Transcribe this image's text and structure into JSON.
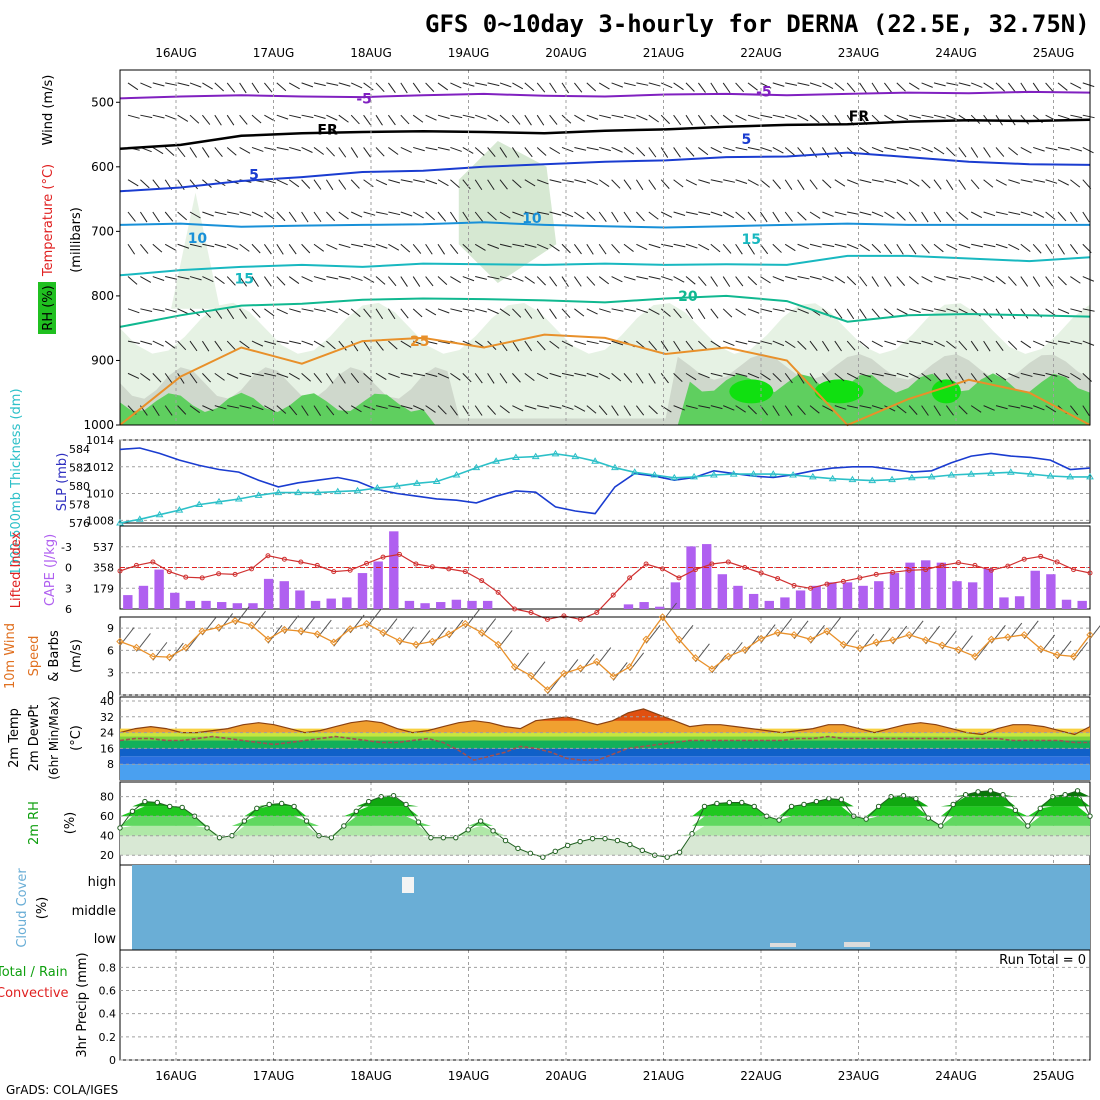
{
  "title": "GFS 0~10day 3-hourly for DERNA (22.5E, 32.75N)",
  "footer": "GrADS: COLA/IGES",
  "dates": [
    "16AUG",
    "17AUG",
    "18AUG",
    "19AUG",
    "20AUG",
    "21AUG",
    "22AUG",
    "23AUG",
    "24AUG",
    "25AUG"
  ],
  "colors": {
    "frame": "#000000",
    "grid": "#a0a0a0",
    "cyan": "#2cc0c8",
    "blue": "#1a3cd0",
    "red": "#e02020",
    "orange": "#e8902a",
    "violet": "#b060f0",
    "green": "#10c010",
    "cloud": "#6aaed6",
    "purple": "#8020c0"
  },
  "chart_data": [
    {
      "id": "upper-air",
      "type": "contour",
      "ylabel": "Wind (m/s)",
      "ylabel2": "Temperature (°C)",
      "ylabel3": "RH (%)",
      "ylabel4": "(millibars)",
      "yticks": [
        500,
        600,
        700,
        800,
        900,
        1000
      ],
      "ylim": [
        1000,
        450
      ],
      "temp_contours": [
        {
          "level": "-5",
          "pressure": [
            494,
            491,
            489,
            491,
            492,
            489,
            487,
            490,
            491,
            488,
            487,
            489,
            487,
            485,
            486,
            484,
            485
          ]
        },
        {
          "level": "FR",
          "pressure": [
            572,
            566,
            552,
            548,
            546,
            545,
            546,
            548,
            544,
            542,
            538,
            535,
            534,
            530,
            528,
            529,
            527
          ]
        },
        {
          "level": "5",
          "pressure": [
            638,
            632,
            622,
            616,
            608,
            606,
            600,
            596,
            592,
            590,
            585,
            584,
            578,
            585,
            592,
            596,
            597
          ]
        },
        {
          "level": "10",
          "pressure": [
            690,
            688,
            693,
            691,
            690,
            689,
            686,
            690,
            692,
            694,
            692,
            690,
            688,
            690,
            690,
            690,
            690
          ]
        },
        {
          "level": "15",
          "pressure": [
            768,
            760,
            755,
            752,
            755,
            750,
            751,
            752,
            750,
            752,
            751,
            752,
            738,
            738,
            742,
            746,
            740
          ]
        },
        {
          "level": "20",
          "pressure": [
            848,
            830,
            815,
            812,
            806,
            804,
            805,
            807,
            810,
            804,
            800,
            808,
            840,
            830,
            828,
            830,
            832
          ]
        },
        {
          "level": "25",
          "pressure": [
            1000,
            925,
            880,
            905,
            870,
            865,
            880,
            860,
            865,
            890,
            880,
            900,
            1000,
            960,
            930,
            950,
            1000
          ]
        }
      ],
      "contour_labels": [
        {
          "text": "-5",
          "x": 1.85,
          "p": 494
        },
        {
          "text": "FR",
          "x": 1.45,
          "p": 542
        },
        {
          "text": "5",
          "x": 0.75,
          "p": 612
        },
        {
          "text": "10",
          "x": 0.12,
          "p": 710
        },
        {
          "text": "15",
          "x": 0.6,
          "p": 773
        },
        {
          "text": "25",
          "x": 2.4,
          "p": 870
        },
        {
          "text": "-5",
          "x": 5.95,
          "p": 483
        },
        {
          "text": "FR",
          "x": 6.9,
          "p": 521
        },
        {
          "text": "5",
          "x": 5.8,
          "p": 557
        },
        {
          "text": "10",
          "x": 3.55,
          "p": 679
        },
        {
          "text": "15",
          "x": 5.8,
          "p": 712
        },
        {
          "text": "20",
          "x": 5.15,
          "p": 800
        }
      ],
      "rh_above_70_regions": [
        {
          "x": [
            -0.4,
            9.3
          ],
          "p_top": 880
        },
        {
          "x": [
            5.2,
            9.3
          ],
          "p_top": 840
        },
        {
          "x": [
            2.9,
            3.9
          ],
          "p_top": 620
        }
      ],
      "rh_above_90_regions": [
        {
          "x": [
            1.7,
            2.4
          ],
          "p_top": 920
        },
        {
          "x": [
            5.8,
            7.2
          ],
          "p_top": 925
        },
        {
          "x": [
            6.4,
            6.8
          ],
          "p_top": 935
        }
      ]
    },
    {
      "id": "thickness-slp",
      "type": "line",
      "ylabel": "1000-500mb Thickness (dm)",
      "ylabel2": "SLP (mb)",
      "yticks_left": [
        576,
        578,
        580,
        582,
        584
      ],
      "yticks_right": [
        1008,
        1010,
        1012,
        1014
      ],
      "series": [
        {
          "name": "SLP (mb)",
          "axis": "right",
          "values": [
            1013.3,
            1013.4,
            1013.0,
            1012.5,
            1012.1,
            1011.8,
            1011.6,
            1011.0,
            1010.5,
            1010.8,
            1011.0,
            1011.2,
            1010.9,
            1010.3,
            1010.0,
            1009.8,
            1009.6,
            1009.5,
            1009.3,
            1009.8,
            1010.2,
            1010.1,
            1009.0,
            1008.7,
            1008.5,
            1010.5,
            1011.5,
            1011.3,
            1011.0,
            1011.2,
            1011.7,
            1011.5,
            1011.3,
            1011.2,
            1011.4,
            1011.7,
            1011.9,
            1012.0,
            1012.0,
            1011.8,
            1011.6,
            1011.7,
            1012.3,
            1012.8,
            1013.0,
            1012.8,
            1012.7,
            1012.5,
            1011.8,
            1011.9
          ]
        },
        {
          "name": "1000-500mb Thickness (dm)",
          "axis": "left",
          "values": [
            576.0,
            576.4,
            576.9,
            577.4,
            578.0,
            578.3,
            578.6,
            579.0,
            579.3,
            579.3,
            579.3,
            579.4,
            579.5,
            579.8,
            580.0,
            580.3,
            580.5,
            581.2,
            582.0,
            582.7,
            583.1,
            583.2,
            583.5,
            583.2,
            582.7,
            582.0,
            581.5,
            581.2,
            580.9,
            581.0,
            581.2,
            581.3,
            581.3,
            581.3,
            581.2,
            581.0,
            580.8,
            580.7,
            580.6,
            580.7,
            580.9,
            581.0,
            581.2,
            581.3,
            581.4,
            581.5,
            581.3,
            581.1,
            581.0,
            581.0
          ]
        }
      ]
    },
    {
      "id": "lifted-cape",
      "type": "bar+line",
      "ylabel": "Lifted Index",
      "ylabel2": "CAPE (J/kg)",
      "yticks_left": [
        -3,
        0,
        3,
        6
      ],
      "yticks_right": [
        179,
        358,
        537
      ],
      "series": [
        {
          "name": "CAPE (J/kg)",
          "type": "bar",
          "values": [
            120,
            200,
            340,
            140,
            70,
            70,
            60,
            50,
            50,
            260,
            240,
            160,
            70,
            90,
            100,
            310,
            410,
            670,
            70,
            50,
            60,
            80,
            70,
            70,
            0,
            0,
            0,
            0,
            0,
            0,
            0,
            0,
            40,
            60,
            20,
            230,
            540,
            560,
            300,
            200,
            130,
            70,
            100,
            160,
            200,
            230,
            230,
            200,
            240,
            310,
            400,
            420,
            400,
            240,
            230,
            350,
            100,
            110,
            330,
            300,
            80,
            70
          ]
        },
        {
          "name": "Lifted Index",
          "type": "line",
          "values": [
            0.5,
            -0.3,
            -0.8,
            0.6,
            1.4,
            1.5,
            0.9,
            1.0,
            0.2,
            -1.7,
            -1.2,
            -0.8,
            -0.3,
            0.6,
            0.4,
            -0.6,
            -1.5,
            -1.9,
            -0.5,
            -0.1,
            0.2,
            0.6,
            1.9,
            3.6,
            6.0,
            6.5,
            7.5,
            7.0,
            7.5,
            6.5,
            4.0,
            1.5,
            -0.5,
            0.2,
            1.5,
            0.3,
            -0.5,
            -0.8,
            0.0,
            0.8,
            1.6,
            2.6,
            3.0,
            2.4,
            2.0,
            1.5,
            1.0,
            0.7,
            0.4,
            0.3,
            -0.3,
            -0.7,
            -0.3,
            0.4,
            -0.2,
            -1.2,
            -1.6,
            -0.8,
            0.3,
            0.8
          ]
        }
      ]
    },
    {
      "id": "wind10m",
      "type": "line",
      "ylabel": "10m Wind Speed & Barbs (m/s)",
      "yticks": [
        0,
        3,
        6,
        9
      ],
      "ylim": [
        0,
        10.5
      ],
      "series": [
        {
          "name": "10m Wind Speed",
          "values": [
            7.2,
            6.4,
            5.2,
            5.1,
            6.4,
            8.6,
            9.1,
            10.0,
            9.4,
            7.5,
            8.8,
            8.6,
            8.2,
            7.1,
            8.9,
            9.6,
            8.4,
            7.3,
            6.8,
            7.2,
            8.2,
            9.6,
            8.4,
            6.8,
            3.8,
            2.6,
            0.7,
            2.9,
            3.6,
            4.5,
            2.5,
            3.8,
            7.5,
            10.5,
            7.5,
            5.0,
            3.5,
            5.2,
            6.1,
            7.6,
            8.4,
            8.1,
            7.5,
            8.6,
            6.8,
            6.3,
            7.1,
            7.4,
            8.1,
            7.4,
            6.7,
            6.1,
            5.2,
            7.5,
            7.8,
            8.1,
            6.2,
            5.4,
            5.2,
            8.1
          ]
        }
      ]
    },
    {
      "id": "temp2m",
      "type": "area+line",
      "ylabel": "2m Temp 2m DewPt (6hr Min/Max) (°C)",
      "yticks": [
        8,
        16,
        24,
        32,
        40
      ],
      "ylim": [
        0,
        42
      ],
      "series": [
        {
          "name": "2m Temp",
          "values": [
            24,
            26,
            27,
            26,
            24,
            24,
            25,
            26,
            28,
            29,
            28,
            26,
            24,
            25,
            27,
            29,
            30,
            29,
            26,
            24,
            25,
            27,
            29,
            30,
            29,
            27,
            26,
            30,
            31,
            32,
            30,
            28,
            30,
            34,
            36,
            33,
            30,
            27,
            28,
            28,
            27,
            26,
            25,
            24,
            25,
            26,
            28,
            28,
            26,
            24,
            26,
            28,
            29,
            28,
            26,
            24,
            23,
            26,
            28,
            28,
            27,
            25,
            23,
            27
          ]
        },
        {
          "name": "2m DewPt",
          "values": [
            20,
            21,
            21,
            20,
            20,
            21,
            22,
            21,
            20,
            19,
            18,
            19,
            20,
            21,
            22,
            21,
            20,
            19,
            19,
            20,
            21,
            19,
            15,
            10,
            12,
            14,
            17,
            16,
            14,
            11,
            10,
            10,
            13,
            16,
            17,
            18,
            19,
            20,
            20,
            20,
            20,
            20,
            20,
            20,
            21,
            21,
            22,
            21,
            21,
            21,
            21,
            21,
            21,
            21,
            21,
            21,
            21,
            21,
            20,
            20,
            20,
            20,
            19,
            19
          ]
        }
      ]
    },
    {
      "id": "rh2m",
      "type": "area+line",
      "ylabel": "2m RH (%)",
      "yticks": [
        20,
        40,
        60,
        80
      ],
      "ylim": [
        10,
        95
      ],
      "series": [
        {
          "name": "2m RH",
          "values": [
            48,
            65,
            75,
            74,
            70,
            69,
            60,
            48,
            38,
            40,
            55,
            68,
            72,
            73,
            70,
            55,
            40,
            38,
            50,
            65,
            75,
            80,
            81,
            72,
            54,
            38,
            38,
            38,
            46,
            55,
            45,
            35,
            27,
            22,
            18,
            24,
            30,
            34,
            37,
            37,
            35,
            31,
            25,
            20,
            18,
            23,
            42,
            70,
            73,
            74,
            74,
            70,
            60,
            56,
            70,
            72,
            75,
            78,
            77,
            60,
            57,
            70,
            80,
            81,
            78,
            58,
            50,
            72,
            82,
            85,
            86,
            82,
            66,
            50,
            68,
            80,
            82,
            86,
            60
          ]
        }
      ]
    },
    {
      "id": "cloud",
      "type": "heatmap",
      "ylabel": "Cloud Cover (%)",
      "levels": [
        "high",
        "middle",
        "low"
      ]
    },
    {
      "id": "precip",
      "type": "bar",
      "ylabel": "3hr Precip (mm)",
      "legend": [
        "Total / Rain",
        "Convective"
      ],
      "run_total": "Run Total = 0",
      "yticks": [
        0,
        0.2,
        0.4,
        0.6,
        0.8
      ],
      "ylim": [
        0,
        0.95
      ],
      "values": []
    }
  ]
}
